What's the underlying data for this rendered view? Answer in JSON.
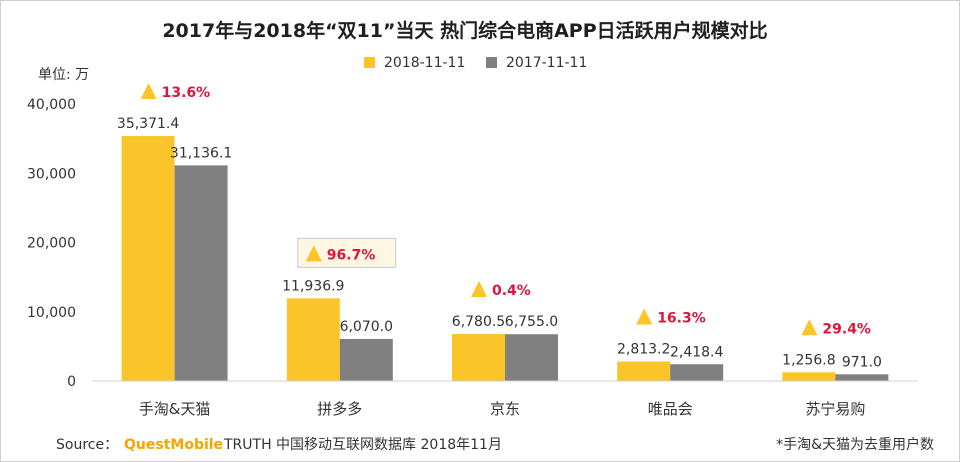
{
  "chart_data": {
    "type": "bar",
    "title": "2017年与2018年“双11”当天 热门综合电商APP日活跃用户规模对比",
    "unit_label": "单位: 万",
    "categories": [
      "手淘&天猫",
      "拼多多",
      "京东",
      "唯品会",
      "苏宁易购"
    ],
    "series": [
      {
        "name": "2018-11-11",
        "color": "#FBC52A",
        "values": [
          35371.4,
          11936.9,
          6780.5,
          2813.2,
          1256.8
        ],
        "labels": [
          "35,371.4",
          "11,936.9",
          "6,780.5",
          "2,813.2",
          "1,256.8"
        ]
      },
      {
        "name": "2017-11-11",
        "color": "#808080",
        "values": [
          31136.1,
          6070.0,
          6755.0,
          2418.4,
          971.0
        ],
        "labels": [
          "31,136.1",
          "6,070.0",
          "6,755.0",
          "2,418.4",
          "971.0"
        ]
      }
    ],
    "growth": [
      "13.6%",
      "96.7%",
      "0.4%",
      "16.3%",
      "29.4%"
    ],
    "highlighted_growth_index": 1,
    "ylim": [
      0,
      40000
    ],
    "yticks": [
      0,
      10000,
      20000,
      30000,
      40000
    ],
    "ytick_labels": [
      "0",
      "10,000",
      "20,000",
      "30,000",
      "40,000"
    ],
    "legend_position": "top-center",
    "grid": false,
    "growth_color": "#E0143C",
    "triangle_color": "#FBC52A"
  },
  "footer": {
    "source_label": "Source：",
    "brand": "QuestMobile",
    "source_text": "TRUTH 中国移动互联网数据库 2018年11月",
    "note": "*手淘&天猫为去重用户数"
  }
}
